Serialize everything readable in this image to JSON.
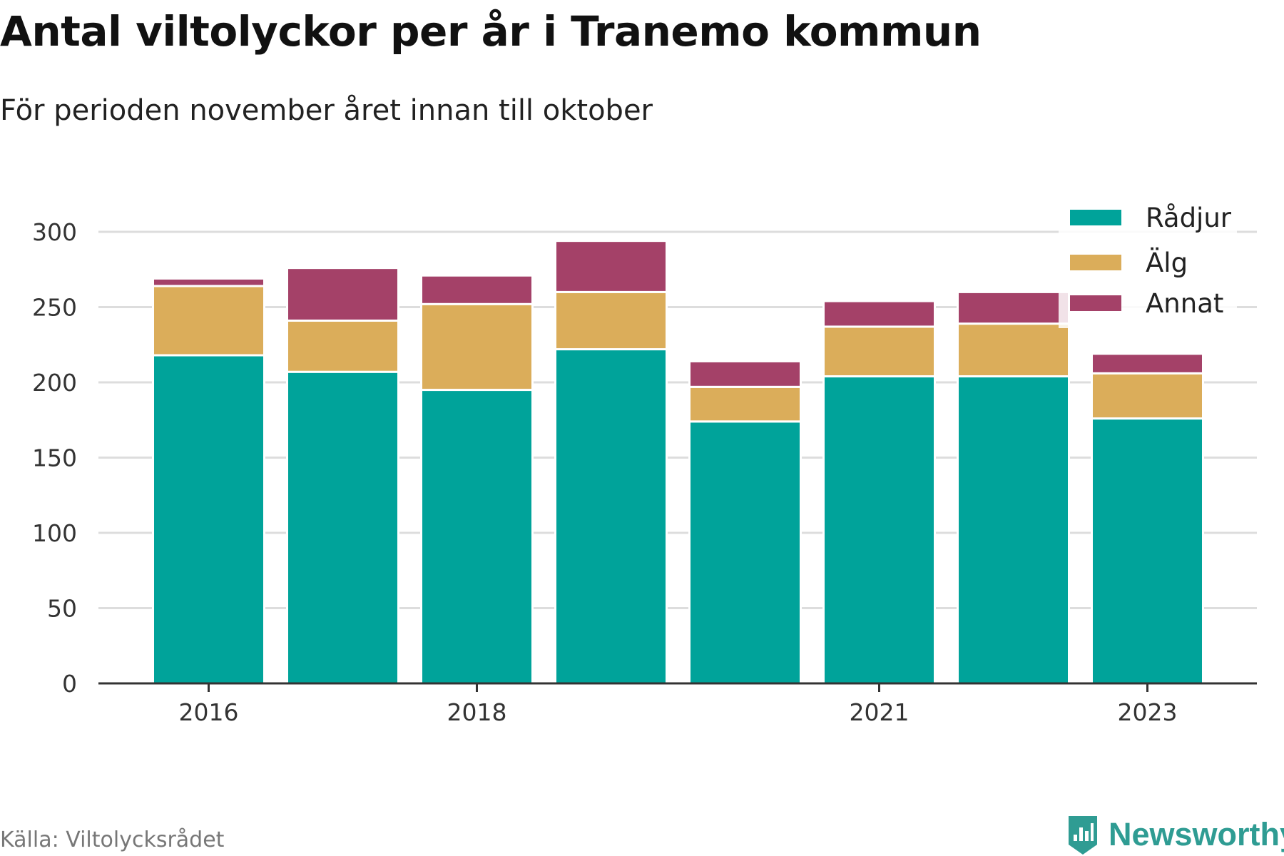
{
  "header": {
    "title": "Antal viltolyckor per år i Tranemo kommun",
    "subtitle": "För perioden november året innan till oktober"
  },
  "footer": {
    "source": "Källa: Viltolycksrådet",
    "brand": "Newsworthy",
    "brand_icon": "bar-chart-badge-icon"
  },
  "colors": {
    "radjur": "#00a39a",
    "alg": "#dbad5a",
    "annat": "#a44168",
    "grid": "#dddddd",
    "axis": "#333333"
  },
  "chart_data": {
    "type": "bar",
    "stacked": true,
    "x": [
      2016,
      2017,
      2018,
      2019,
      2020,
      2021,
      2022,
      2023
    ],
    "x_tick_labels": [
      "2016",
      "2018",
      "2021",
      "2023"
    ],
    "series": [
      {
        "name": "Rådjur",
        "values": [
          218,
          207,
          195,
          222,
          174,
          204,
          204,
          176
        ]
      },
      {
        "name": "Älg",
        "values": [
          46,
          34,
          57,
          38,
          23,
          33,
          35,
          30
        ]
      },
      {
        "name": "Annat",
        "values": [
          5,
          35,
          19,
          34,
          17,
          17,
          21,
          13
        ]
      }
    ],
    "y_ticks": [
      0,
      50,
      100,
      150,
      200,
      250,
      300
    ],
    "ylim": [
      0,
      300
    ],
    "grid": true,
    "legend_position": "top-right"
  }
}
